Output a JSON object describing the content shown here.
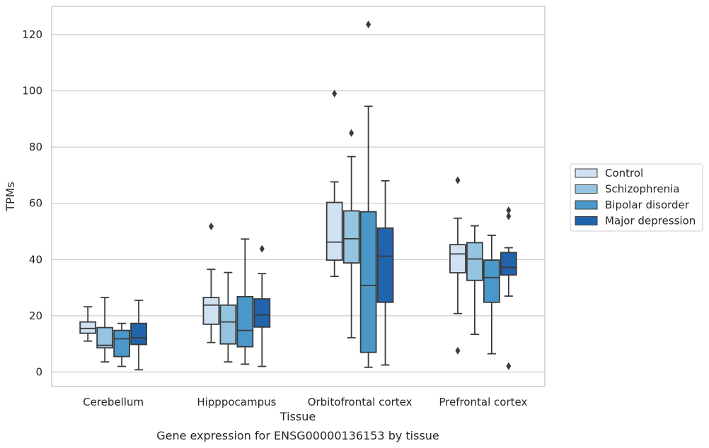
{
  "chart_data": {
    "type": "box",
    "caption": "Gene expression for ENSG00000136153 by tissue",
    "xlabel": "Tissue",
    "ylabel": "TPMs",
    "ylim": [
      -5.5,
      130
    ],
    "yticks": [
      0,
      20,
      40,
      60,
      80,
      100,
      120
    ],
    "grid": "horizontal",
    "legend_position": "right",
    "categories": [
      "Cerebellum",
      "Hipppocampus",
      "Orbitofrontal cortex",
      "Prefrontal cortex"
    ],
    "series": [
      {
        "name": "Control",
        "color": "#d0e1f2",
        "boxes": [
          {
            "whislo": 11,
            "q1": 13.8,
            "med": 15.5,
            "q3": 17.8,
            "whishi": 23.2,
            "fliers": []
          },
          {
            "whislo": 10.5,
            "q1": 17,
            "med": 23.8,
            "q3": 26.5,
            "whishi": 36.5,
            "fliers": [
              51.8
            ]
          },
          {
            "whislo": 34,
            "q1": 39.8,
            "med": 46.2,
            "q3": 60.3,
            "whishi": 67.6,
            "fliers": [
              99
            ]
          },
          {
            "whislo": 20.8,
            "q1": 35.3,
            "med": 42,
            "q3": 45.3,
            "whishi": 54.7,
            "fliers": [
              68.2,
              7.6
            ]
          }
        ]
      },
      {
        "name": "Schizophrenia",
        "color": "#94c4df",
        "boxes": [
          {
            "whislo": 3.6,
            "q1": 8.6,
            "med": 9.5,
            "q3": 15.8,
            "whishi": 26.5,
            "fliers": []
          },
          {
            "whislo": 3.6,
            "q1": 10,
            "med": 17.8,
            "q3": 23.8,
            "whishi": 35.4,
            "fliers": []
          },
          {
            "whislo": 12.2,
            "q1": 38.8,
            "med": 47.4,
            "q3": 57.3,
            "whishi": 76.6,
            "fliers": [
              85
            ]
          },
          {
            "whislo": 13.4,
            "q1": 32.6,
            "med": 40.2,
            "q3": 46,
            "whishi": 52,
            "fliers": []
          }
        ]
      },
      {
        "name": "Bipolar disorder",
        "color": "#4a98c9",
        "boxes": [
          {
            "whislo": 2,
            "q1": 5.5,
            "med": 11.8,
            "q3": 14.8,
            "whishi": 17.3,
            "fliers": []
          },
          {
            "whislo": 2.8,
            "q1": 9,
            "med": 14.8,
            "q3": 26.8,
            "whishi": 47.3,
            "fliers": []
          },
          {
            "whislo": 1.7,
            "q1": 7,
            "med": 30.8,
            "q3": 57,
            "whishi": 94.5,
            "fliers": [
              123.6
            ]
          },
          {
            "whislo": 6.5,
            "q1": 24.8,
            "med": 33.6,
            "q3": 39.8,
            "whishi": 48.6,
            "fliers": []
          }
        ]
      },
      {
        "name": "Major depression",
        "color": "#2164ab",
        "boxes": [
          {
            "whislo": 0.8,
            "q1": 9.8,
            "med": 12.2,
            "q3": 17.3,
            "whishi": 25.5,
            "fliers": []
          },
          {
            "whislo": 2,
            "q1": 16,
            "med": 20.3,
            "q3": 26,
            "whishi": 35,
            "fliers": [
              43.8
            ]
          },
          {
            "whislo": 2.5,
            "q1": 24.8,
            "med": 41.2,
            "q3": 51.2,
            "whishi": 68,
            "fliers": []
          },
          {
            "whislo": 27,
            "q1": 34.5,
            "med": 37.2,
            "q3": 42.5,
            "whishi": 44.2,
            "fliers": [
              57.5,
              55.4,
              2.1
            ]
          }
        ]
      }
    ]
  }
}
